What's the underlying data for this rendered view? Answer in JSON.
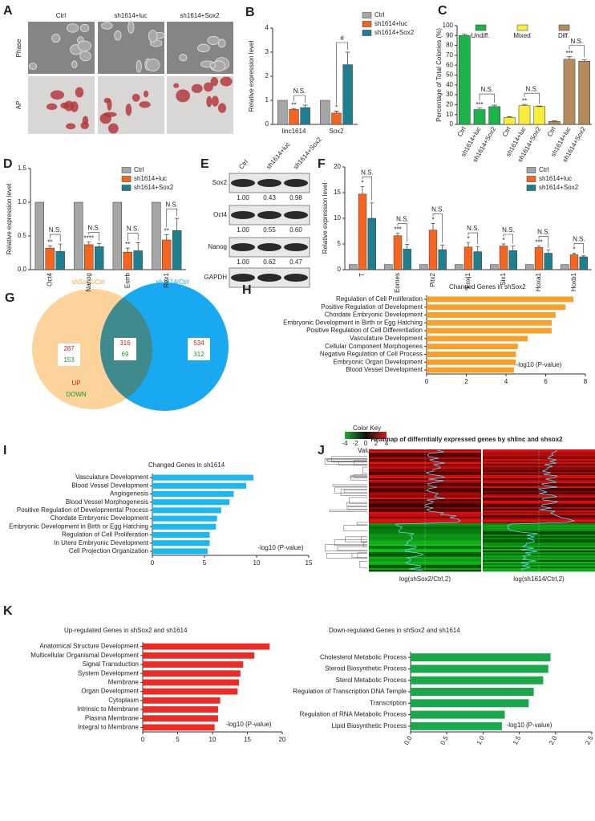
{
  "panel_a": {
    "panel": "A",
    "columns": [
      "Ctrl",
      "sh1614+luc",
      "sh1614+Sox2"
    ],
    "rows": [
      "Phase",
      "AP"
    ]
  },
  "chart_data": [
    {
      "type": "bar",
      "panel": "B",
      "ylabel": "Relative expression level",
      "categories": [
        "linc1614",
        "Sox2"
      ],
      "series": [
        {
          "name": "Ctrl",
          "color": "#a6a6a6",
          "values": [
            1,
            1
          ],
          "errors": [
            0,
            0
          ]
        },
        {
          "name": "sh1614+luc",
          "color": "#f4651f",
          "values": [
            0.62,
            0.47
          ],
          "errors": [
            0.04,
            0.08
          ]
        },
        {
          "name": "sh1614+Sox2",
          "color": "#1f7f8f",
          "values": [
            0.7,
            2.48
          ],
          "errors": [
            0.1,
            0.52
          ]
        }
      ],
      "ylim": [
        0,
        4
      ],
      "yticks": [
        0,
        1,
        2,
        3,
        4
      ],
      "annotations": [
        "**",
        "N.S.",
        "*",
        "#"
      ]
    },
    {
      "type": "bar",
      "panel": "C",
      "ylabel": "Percentage of Total Colonies (%)",
      "categories": [
        "Ctrl",
        "sh1614+luc",
        "sh1614+Sox2",
        "Ctrl",
        "sh1614+luc",
        "sh1614+Sox2",
        "Ctrl",
        "sh1614+luc",
        "sh1614+Sox2"
      ],
      "series": [
        {
          "name": "Undiff.",
          "color": "#1db34b",
          "values": [
            90,
            15,
            18,
            null,
            null,
            null,
            null,
            null,
            null
          ],
          "errors": [
            1.5,
            1.5,
            1.5,
            null,
            null,
            null,
            null,
            null,
            null
          ]
        },
        {
          "name": "Mixed",
          "color": "#f7ee3c",
          "values": [
            null,
            null,
            null,
            7,
            19,
            18,
            null,
            null,
            null
          ],
          "errors": [
            null,
            null,
            null,
            0.8,
            1.2,
            0.6,
            null,
            null,
            null
          ]
        },
        {
          "name": "Diff.",
          "color": "#b38b5d",
          "values": [
            null,
            null,
            null,
            null,
            null,
            null,
            3,
            66,
            64
          ],
          "errors": [
            null,
            null,
            null,
            null,
            null,
            null,
            0.8,
            2.5,
            1.5
          ]
        }
      ],
      "ylim": [
        0,
        100
      ],
      "yticks": [
        0,
        10,
        20,
        30,
        40,
        50,
        60,
        70,
        80,
        90,
        100
      ],
      "annotations": [
        "***",
        "N.S.",
        "**",
        "N.S.",
        "***",
        "N.S."
      ]
    },
    {
      "type": "bar",
      "panel": "D",
      "ylabel": "Relative expression level",
      "categories": [
        "Oct4",
        "Nanog",
        "Esrrb",
        "Rex1"
      ],
      "series": [
        {
          "name": "Ctrl",
          "color": "#a6a6a6",
          "values": [
            1,
            1,
            1,
            1
          ],
          "errors": [
            0,
            0,
            0,
            0
          ]
        },
        {
          "name": "sh1614+luc",
          "color": "#f4651f",
          "values": [
            0.32,
            0.37,
            0.26,
            0.44
          ],
          "errors": [
            0.03,
            0.04,
            0.06,
            0.08
          ]
        },
        {
          "name": "sh1614+Sox2",
          "color": "#1f7f8f",
          "values": [
            0.27,
            0.34,
            0.28,
            0.58
          ],
          "errors": [
            0.11,
            0.05,
            0.12,
            0.18
          ]
        }
      ],
      "ylim": [
        0,
        1.5
      ],
      "yticks": [
        {
          "value": 0,
          "label": "0.0"
        },
        {
          "value": 0.5,
          "label": "0.5"
        },
        {
          "value": 1,
          "label": "1.0"
        },
        {
          "value": 1.5,
          "label": "1.5"
        }
      ],
      "annotations": [
        "**",
        "N.S.",
        "****",
        "N.S.",
        "**",
        "N.S.",
        "**",
        "N.S."
      ]
    },
    {
      "type": "bar",
      "panel": "F",
      "ylabel": "Relative expression level",
      "categories": [
        "T",
        "Eomes",
        "Pitx2",
        "Foxj1",
        "Six1",
        "Hoxa1",
        "Hoxb1"
      ],
      "series": [
        {
          "name": "Ctrl",
          "color": "#a6a6a6",
          "values": [
            1,
            1,
            1,
            1,
            1,
            1,
            1
          ],
          "errors": [
            0,
            0,
            0,
            0,
            0,
            0,
            0
          ]
        },
        {
          "name": "sh1614+luc",
          "color": "#f4651f",
          "values": [
            14.7,
            6.6,
            7.7,
            4.4,
            4.6,
            4.3,
            2.9
          ],
          "errors": [
            1.5,
            0.5,
            1.3,
            0.9,
            0.4,
            0.3,
            0.3
          ]
        },
        {
          "name": "sh1614+Sox2",
          "color": "#1f7f8f",
          "values": [
            10,
            4,
            3.9,
            3.5,
            3.7,
            3.2,
            2.5
          ],
          "errors": [
            3,
            0.9,
            0.9,
            1,
            0.9,
            0.6,
            0.2
          ]
        }
      ],
      "ylim": [
        0,
        20
      ],
      "yticks": [
        0,
        5,
        10,
        15,
        20
      ],
      "annotations": [
        "*",
        "N.S.",
        "***",
        "N.S.",
        "*",
        "N.S.",
        "*",
        "N.S.",
        "*",
        "N.S.",
        "***",
        "N.S.",
        "*",
        "N.S."
      ]
    },
    {
      "type": "barh",
      "panel": "H",
      "title": "Changed Genes in shSox2",
      "xlabel": "-log10 (P-value)",
      "categories": [
        "Regulation of Cell Proliferation",
        "Positive Regulation of Development",
        "Chordate Embryonic Development",
        "Embryonic Development in Birth or Egg Hatching",
        "Positive Regulation of Cell Differentiation",
        "Vasculature Development",
        "Cellular Component Morphogenes",
        "Negative Regulation of Cell Process",
        "Embryonic Organ Development",
        "Blood Vessel Development"
      ],
      "values": [
        7.4,
        7.0,
        6.5,
        6.3,
        6.3,
        5.1,
        4.6,
        4.5,
        4.5,
        4.4
      ],
      "color": "#f9a02a",
      "xlim": [
        0,
        8
      ],
      "xticks": [
        0,
        2,
        4,
        6,
        8
      ]
    },
    {
      "type": "barh",
      "panel": "I",
      "title": "Changed Genes in sh1614",
      "xlabel": "-log10 (P-value)",
      "categories": [
        "Vasculature Development",
        "Blood Vessel Development",
        "Angiogenesis",
        "Blood Vessel Morphogenesis",
        "Positive Regulation of Developmental Process",
        "Chordate Embryonic Development",
        "Embryonic Development in Birth or Egg Hatching",
        "Regulation of Cell Proliferation",
        "In Utero Embryonic Development",
        "Cell Projection Organization"
      ],
      "values": [
        9.7,
        9.0,
        7.8,
        7.4,
        6.6,
        6.2,
        6.1,
        5.5,
        5.5,
        5.3
      ],
      "color": "#1cb8f0",
      "xlim": [
        0,
        15
      ],
      "xticks": [
        0,
        5,
        10,
        15
      ]
    },
    {
      "type": "barh",
      "panel": "K",
      "title": "Up-regulated Genes in shSox2 and sh1614",
      "xlabel": "-log10 (P-value)",
      "categories": [
        "Anatomical Structure Development",
        "Multicellular Organismal Development",
        "Signal Transduction",
        "System Development",
        "Membrane",
        "Organ Development",
        "Cytoplasm",
        "Intrinsic to Membrane",
        "Plasma Membrane",
        "Integral to Membrane"
      ],
      "values": [
        18.2,
        16.0,
        14.4,
        14.0,
        13.8,
        13.6,
        11.1,
        10.8,
        10.8,
        10.3
      ],
      "color": "#ee2a24",
      "xlim": [
        0,
        20
      ],
      "xticks": [
        0,
        5,
        10,
        15,
        20
      ]
    },
    {
      "type": "barh",
      "title": "Down-regulated Genes in shSox2 and sh1614",
      "xlabel": "-log10 (P-value)",
      "categories": [
        "Cholesterol Metabolic Process",
        "Steroid Biosynthetic Process",
        "Sterol Metabolic Process",
        "Regulation of Transcription DNA Temple",
        "Transcription",
        "Regulation of RNA Metabolic Process",
        "Lipid Biosynthetic Process"
      ],
      "values": [
        1.93,
        1.9,
        1.83,
        1.7,
        1.63,
        1.3,
        1.26
      ],
      "color": "#1aa84a",
      "xlim": [
        0,
        2.5
      ],
      "xticks": [
        {
          "value": 0,
          "label": "0.0"
        },
        {
          "value": 0.5,
          "label": "0.5"
        },
        {
          "value": 1,
          "label": "1.0"
        },
        {
          "value": 1.5,
          "label": "1.5"
        },
        {
          "value": 2,
          "label": "2.0"
        },
        {
          "value": 2.5,
          "label": "2.5"
        }
      ]
    }
  ],
  "blot": {
    "panel": "E",
    "columns": [
      "Ctrl",
      "sh1614+luc",
      "sh1614+Sox2"
    ],
    "rows": [
      {
        "label": "Sox2",
        "values": [
          "1.00",
          "0.43",
          "0.98"
        ]
      },
      {
        "label": "Oct4",
        "values": [
          "1.00",
          "0.55",
          "0.60"
        ]
      },
      {
        "label": "Nanog",
        "values": [
          "1.00",
          "0.62",
          "0.47"
        ]
      },
      {
        "label": "GAPDH"
      }
    ]
  },
  "venn": {
    "panel": "G",
    "sets": [
      "shSox2/Ctrl",
      "sh1614/Ctrl"
    ],
    "regions": [
      {
        "up": "287",
        "down": "153"
      },
      {
        "up": "316",
        "down": "69"
      },
      {
        "up": "534",
        "down": "312"
      }
    ],
    "up": "UP",
    "down": "DOWN"
  },
  "heatmap": {
    "panel": "J",
    "title": "Heatmap of differntially expressed genes by shlinc and shsox2",
    "color_key": "Color Key",
    "key_label": "Value",
    "key_ticks": [
      -4,
      -2,
      0,
      2,
      4
    ],
    "columns": [
      "log(shSox2/Ctrl,2)",
      "log(sh1614/Ctrl,2)"
    ]
  }
}
